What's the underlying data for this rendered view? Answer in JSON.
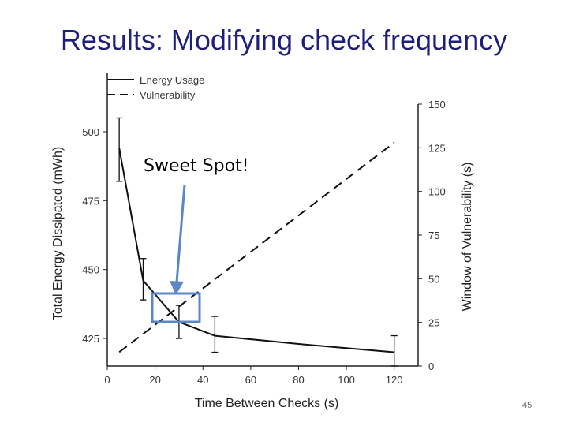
{
  "slide": {
    "title": "Results: Modifying check frequency",
    "page_number": "45"
  },
  "annotation": {
    "text": "Sweet Spot!",
    "arrow_color": "#5b87c5",
    "box_color": "#5b87c5"
  },
  "chart_data": {
    "type": "line",
    "xlabel": "Time Between Checks (s)",
    "ylabel_left": "Total Energy Dissipated (mWh)",
    "ylabel_right": "Window of Vulnerability (s)",
    "xlim": [
      0,
      130
    ],
    "ylim_left": [
      415,
      510
    ],
    "ylim_right": [
      0,
      150
    ],
    "x_ticks": [
      0,
      20,
      40,
      60,
      80,
      100,
      120
    ],
    "y_ticks_left": [
      425,
      450,
      475,
      500
    ],
    "y_ticks_right": [
      0,
      25,
      50,
      75,
      100,
      125,
      150
    ],
    "legend_position": "top-left",
    "series": [
      {
        "name": "Energy Usage",
        "axis": "left",
        "style": "solid",
        "points": [
          [
            5,
            494
          ],
          [
            15,
            446
          ],
          [
            30,
            431
          ],
          [
            45,
            426
          ],
          [
            80,
            423
          ],
          [
            120,
            420
          ]
        ],
        "error_bars": [
          [
            5,
            482,
            505
          ],
          [
            15,
            439,
            454
          ],
          [
            30,
            425,
            437
          ],
          [
            45,
            420,
            433
          ],
          [
            120,
            415,
            426
          ]
        ]
      },
      {
        "name": "Vulnerability",
        "axis": "right",
        "style": "dashed",
        "points": [
          [
            5,
            8
          ],
          [
            120,
            128
          ]
        ]
      }
    ]
  }
}
